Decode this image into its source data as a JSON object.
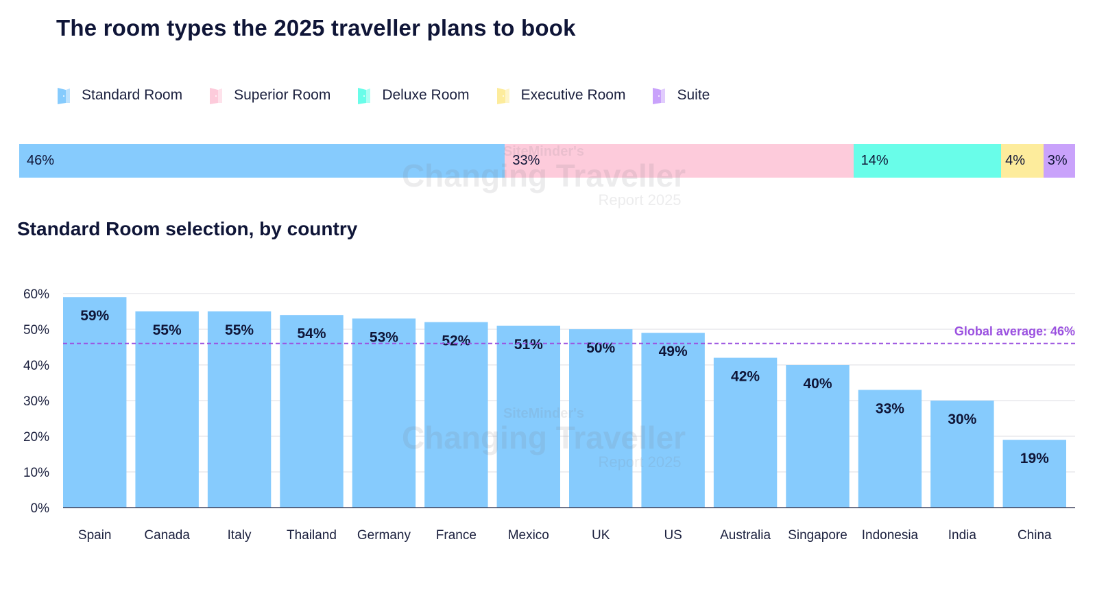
{
  "title": "The room types the 2025 traveller plans to book",
  "legend": [
    {
      "label": "Standard Room",
      "color": "#86cbfd"
    },
    {
      "label": "Superior Room",
      "color": "#fdcbdb"
    },
    {
      "label": "Deluxe Room",
      "color": "#69fde9"
    },
    {
      "label": "Executive Room",
      "color": "#fdec9c"
    },
    {
      "label": "Suite",
      "color": "#c9a2fb"
    }
  ],
  "watermark": {
    "line1": "SiteMinder's",
    "line2": "Changing Traveller",
    "line3": "Report 2025"
  },
  "subtitle": "Standard Room selection, by country",
  "chart_data": [
    {
      "type": "bar",
      "stacked": true,
      "orientation": "horizontal",
      "title": "The room types the 2025 traveller plans to book",
      "series": [
        {
          "name": "Standard Room",
          "value": 46,
          "label": "46%",
          "color": "#86cbfd"
        },
        {
          "name": "Superior Room",
          "value": 33,
          "label": "33%",
          "color": "#fdcbdb"
        },
        {
          "name": "Deluxe Room",
          "value": 14,
          "label": "14%",
          "color": "#69fde9"
        },
        {
          "name": "Executive Room",
          "value": 4,
          "label": "4%",
          "color": "#fdec9c"
        },
        {
          "name": "Suite",
          "value": 3,
          "label": "3%",
          "color": "#c9a2fb"
        }
      ],
      "legend": "top-left"
    },
    {
      "type": "bar",
      "title": "Standard Room selection, by country",
      "categories": [
        "Spain",
        "Canada",
        "Italy",
        "Thailand",
        "Germany",
        "France",
        "Mexico",
        "UK",
        "US",
        "Australia",
        "Singapore",
        "Indonesia",
        "India",
        "China"
      ],
      "values": [
        59,
        55,
        55,
        54,
        53,
        52,
        51,
        50,
        49,
        42,
        40,
        33,
        30,
        19
      ],
      "value_labels": [
        "59%",
        "55%",
        "55%",
        "54%",
        "53%",
        "52%",
        "51%",
        "50%",
        "49%",
        "42%",
        "40%",
        "33%",
        "30%",
        "19%"
      ],
      "yticks": [
        "0%",
        "10%",
        "20%",
        "30%",
        "40%",
        "50%",
        "60%"
      ],
      "ylim": [
        0,
        60
      ],
      "grid": true,
      "bar_color": "#86cbfd",
      "reference_line": {
        "value": 46,
        "label": "Global average: 46%",
        "color": "#9b51e0"
      }
    }
  ]
}
